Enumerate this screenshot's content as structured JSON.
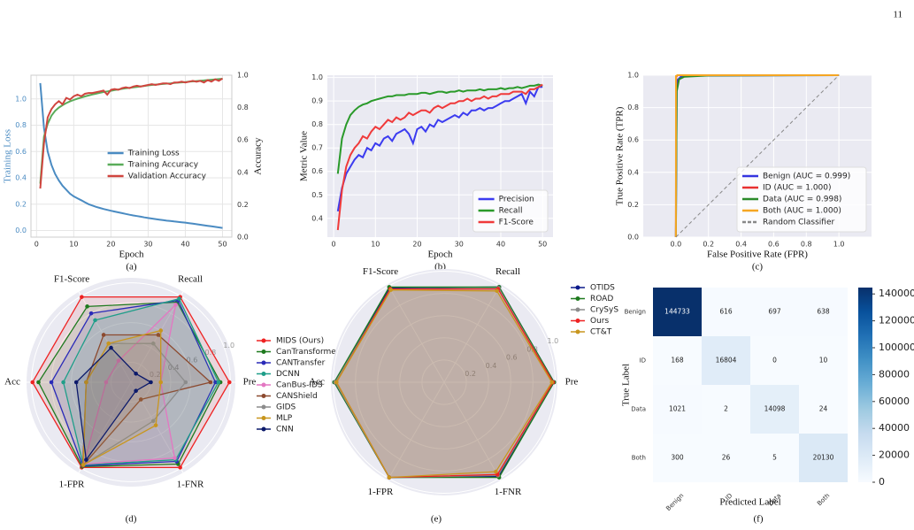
{
  "page_number": "11",
  "chart_data": [
    {
      "type": "line",
      "caption": "(a)",
      "xlabel": "Epoch",
      "ylabel": "Training Loss",
      "y2label": "Accuracy",
      "xlim": [
        -1.5,
        52.5
      ],
      "xticks": [
        0,
        10,
        20,
        30,
        40,
        50
      ],
      "ylim": [
        -0.05,
        1.18
      ],
      "yticks": [
        {
          "value": 0,
          "label": "0.0"
        },
        0.2,
        0.4,
        0.6,
        0.8,
        {
          "value": 1,
          "label": "1.0"
        }
      ],
      "y2lim": [
        0,
        1
      ],
      "y2ticks": [
        {
          "value": 0,
          "label": "0.0"
        },
        0.2,
        0.4,
        0.6,
        0.8,
        {
          "value": 1,
          "label": "1.0"
        }
      ],
      "grid": true,
      "legend": "center right",
      "ylabel_color": "#4a8bc2",
      "x": [
        1,
        2,
        3,
        4,
        5,
        6,
        7,
        8,
        9,
        10,
        11,
        12,
        13,
        14,
        15,
        16,
        17,
        18,
        19,
        20,
        21,
        22,
        23,
        24,
        25,
        26,
        27,
        28,
        29,
        30,
        31,
        32,
        33,
        34,
        35,
        36,
        37,
        38,
        39,
        40,
        41,
        42,
        43,
        44,
        45,
        46,
        47,
        48,
        49,
        50
      ],
      "series": [
        {
          "name": "Training Loss",
          "color": "#4a8bc2",
          "values": [
            1.12,
            0.78,
            0.6,
            0.5,
            0.43,
            0.38,
            0.34,
            0.31,
            0.28,
            0.26,
            0.245,
            0.23,
            0.215,
            0.2,
            0.19,
            0.18,
            0.172,
            0.164,
            0.157,
            0.15,
            0.144,
            0.138,
            0.132,
            0.126,
            0.12,
            0.115,
            0.11,
            0.105,
            0.1,
            0.095,
            0.091,
            0.087,
            0.083,
            0.079,
            0.075,
            0.072,
            0.069,
            0.066,
            0.063,
            0.06,
            0.056,
            0.052,
            0.048,
            0.044,
            0.04,
            0.036,
            0.032,
            0.028,
            0.024,
            0.02
          ]
        },
        {
          "name": "Training Accuracy",
          "color": "#5aac5a",
          "axis": "y2",
          "values": [
            0.33,
            0.62,
            0.7,
            0.75,
            0.78,
            0.8,
            0.815,
            0.828,
            0.838,
            0.847,
            0.855,
            0.862,
            0.869,
            0.875,
            0.881,
            0.886,
            0.891,
            0.896,
            0.9,
            0.904,
            0.908,
            0.912,
            0.916,
            0.919,
            0.922,
            0.925,
            0.928,
            0.931,
            0.934,
            0.937,
            0.94,
            0.942,
            0.944,
            0.946,
            0.948,
            0.95,
            0.952,
            0.954,
            0.956,
            0.958,
            0.96,
            0.962,
            0.964,
            0.966,
            0.968,
            0.97,
            0.972,
            0.974,
            0.976,
            0.978
          ]
        },
        {
          "name": "Validation Accuracy",
          "color": "#d0453f",
          "axis": "y2",
          "values": [
            0.3,
            0.58,
            0.74,
            0.79,
            0.82,
            0.84,
            0.82,
            0.86,
            0.85,
            0.87,
            0.88,
            0.87,
            0.885,
            0.89,
            0.89,
            0.895,
            0.9,
            0.905,
            0.88,
            0.91,
            0.915,
            0.91,
            0.92,
            0.925,
            0.92,
            0.93,
            0.935,
            0.93,
            0.935,
            0.94,
            0.945,
            0.94,
            0.945,
            0.95,
            0.95,
            0.945,
            0.955,
            0.955,
            0.96,
            0.955,
            0.96,
            0.965,
            0.96,
            0.965,
            0.955,
            0.97,
            0.96,
            0.975,
            0.965,
            0.98
          ]
        }
      ]
    },
    {
      "type": "line",
      "caption": "(b)",
      "xlabel": "Epoch",
      "ylabel": "Metric Value",
      "xlim": [
        -1.5,
        52.5
      ],
      "xticks": [
        0,
        10,
        20,
        30,
        40,
        50
      ],
      "ylim": [
        0.32,
        1.01
      ],
      "yticks": [
        0.4,
        0.5,
        0.6,
        0.7,
        0.8,
        0.9,
        {
          "value": 1,
          "label": "1.0"
        }
      ],
      "grid": true,
      "background": "#eaeaf2",
      "legend": "lower right",
      "x": [
        1,
        2,
        3,
        4,
        5,
        6,
        7,
        8,
        9,
        10,
        11,
        12,
        13,
        14,
        15,
        16,
        17,
        18,
        19,
        20,
        21,
        22,
        23,
        24,
        25,
        26,
        27,
        28,
        29,
        30,
        31,
        32,
        33,
        34,
        35,
        36,
        37,
        38,
        39,
        40,
        41,
        42,
        43,
        44,
        45,
        46,
        47,
        48,
        49,
        50
      ],
      "series": [
        {
          "name": "Precision",
          "color": "#3b3bf0",
          "values": [
            0.43,
            0.53,
            0.59,
            0.62,
            0.65,
            0.67,
            0.66,
            0.7,
            0.69,
            0.72,
            0.71,
            0.74,
            0.75,
            0.73,
            0.76,
            0.77,
            0.78,
            0.76,
            0.72,
            0.78,
            0.79,
            0.77,
            0.8,
            0.79,
            0.82,
            0.81,
            0.82,
            0.83,
            0.84,
            0.83,
            0.85,
            0.84,
            0.86,
            0.86,
            0.87,
            0.86,
            0.87,
            0.87,
            0.88,
            0.89,
            0.9,
            0.9,
            0.91,
            0.92,
            0.93,
            0.89,
            0.94,
            0.92,
            0.96,
            0.96
          ]
        },
        {
          "name": "Recall",
          "color": "#2a9a2a",
          "values": [
            0.59,
            0.74,
            0.8,
            0.84,
            0.86,
            0.875,
            0.885,
            0.89,
            0.9,
            0.905,
            0.91,
            0.915,
            0.92,
            0.92,
            0.925,
            0.925,
            0.925,
            0.93,
            0.93,
            0.93,
            0.935,
            0.935,
            0.93,
            0.935,
            0.94,
            0.94,
            0.935,
            0.94,
            0.94,
            0.945,
            0.94,
            0.945,
            0.945,
            0.945,
            0.95,
            0.945,
            0.95,
            0.95,
            0.95,
            0.955,
            0.95,
            0.955,
            0.955,
            0.96,
            0.955,
            0.96,
            0.965,
            0.965,
            0.97,
            0.965
          ]
        },
        {
          "name": "F1-Score",
          "color": "#f03a3a",
          "values": [
            0.35,
            0.52,
            0.62,
            0.67,
            0.7,
            0.72,
            0.75,
            0.74,
            0.77,
            0.79,
            0.78,
            0.8,
            0.82,
            0.81,
            0.83,
            0.82,
            0.83,
            0.85,
            0.84,
            0.85,
            0.86,
            0.86,
            0.85,
            0.87,
            0.88,
            0.87,
            0.88,
            0.89,
            0.89,
            0.9,
            0.9,
            0.91,
            0.9,
            0.91,
            0.91,
            0.92,
            0.91,
            0.92,
            0.92,
            0.93,
            0.93,
            0.93,
            0.94,
            0.94,
            0.94,
            0.93,
            0.95,
            0.95,
            0.96,
            0.97
          ]
        }
      ]
    },
    {
      "type": "line",
      "caption": "(c)",
      "xlabel": "False Positive Rate  (FPR)",
      "ylabel": "True Positive Rate  (TPR)",
      "xlim": [
        -0.2,
        1.2
      ],
      "xticks": [
        {
          "value": 0,
          "label": "0.0"
        },
        0.2,
        0.4,
        0.6,
        0.8,
        {
          "value": 1,
          "label": "1.0"
        }
      ],
      "ylim": [
        0,
        1
      ],
      "yticks": [
        {
          "value": 0,
          "label": "0.0"
        },
        0.2,
        0.4,
        0.6,
        0.8,
        {
          "value": 1,
          "label": "1.0"
        }
      ],
      "grid": true,
      "background": "#eaeaf2",
      "legend": "lower right",
      "series": [
        {
          "name": "Benign (AUC = 0.999)",
          "color": "#3434e0",
          "x": [
            0,
            0.005,
            0.01,
            0.03,
            0.1,
            1
          ],
          "values": [
            0,
            0.93,
            0.97,
            0.99,
            0.997,
            1
          ]
        },
        {
          "name": "ID (AUC = 1.000)",
          "color": "#e83030",
          "x": [
            0,
            0.002,
            0.01,
            1
          ],
          "values": [
            0,
            0.99,
            1,
            1
          ]
        },
        {
          "name": "Data (AUC = 0.998)",
          "color": "#2a8a2a",
          "x": [
            0,
            0.005,
            0.02,
            0.05,
            0.2,
            1
          ],
          "values": [
            0,
            0.9,
            0.975,
            0.99,
            0.998,
            1
          ]
        },
        {
          "name": "Both (AUC = 1.000)",
          "color": "#f5a623",
          "x": [
            0,
            0.001,
            0.01,
            1
          ],
          "values": [
            0,
            0.995,
            1,
            1
          ]
        },
        {
          "name": "Random Classifier",
          "color": "#888888",
          "dash": true,
          "x": [
            0,
            1
          ],
          "values": [
            0,
            1
          ]
        }
      ]
    },
    {
      "type": "radar",
      "caption": "(d)",
      "axes": [
        "Pre",
        "Recall",
        "F1-Score",
        "Acc",
        "1-FPR",
        "1-FNR"
      ],
      "rlim": [
        0,
        1.05
      ],
      "rticks": [
        0.2,
        0.4,
        0.6,
        0.8,
        {
          "value": 1,
          "label": "1.0"
        }
      ],
      "background": "#eaeaf2",
      "series": [
        {
          "name": "MIDS (Ours)",
          "color": "#ee2222",
          "values": [
            0.99,
            0.99,
            0.99,
            0.99,
            0.99,
            0.99
          ]
        },
        {
          "name": "CanTransformer",
          "color": "#1f7a1f",
          "values": [
            0.9,
            0.93,
            0.88,
            0.93,
            0.98,
            0.95
          ]
        },
        {
          "name": "CANTransfer",
          "color": "#2a2ab8",
          "values": [
            0.85,
            0.95,
            0.8,
            0.8,
            0.97,
            0.92
          ]
        },
        {
          "name": "DCNN",
          "color": "#1f9e89",
          "values": [
            0.88,
            0.97,
            0.72,
            0.68,
            0.96,
            0.9
          ]
        },
        {
          "name": "CanBus-IDS",
          "color": "#e377c2",
          "values": [
            0.3,
            0.9,
            0.25,
            0.25,
            0.95,
            0.88
          ]
        },
        {
          "name": "CANShield",
          "color": "#8c4a2f",
          "values": [
            0.8,
            0.55,
            0.55,
            0.45,
            0.97,
            0.2
          ]
        },
        {
          "name": "GIDS",
          "color": "#8c8c8c",
          "values": [
            0.55,
            0.45,
            0.45,
            0.45,
            0.96,
            0.45
          ]
        },
        {
          "name": "MLP",
          "color": "#c8961e",
          "values": [
            0.3,
            0.6,
            0.45,
            0.45,
            0.96,
            0.5
          ]
        },
        {
          "name": "CNN",
          "color": "#0c1a6b",
          "values": [
            0.2,
            0.1,
            0.4,
            0.55,
            0.9,
            0.1
          ]
        }
      ]
    },
    {
      "type": "radar",
      "caption": "(e)",
      "axes": [
        "Pre",
        "Recall",
        "F1-Score",
        "Acc",
        "1-FPR",
        "1-FNR"
      ],
      "rlim": [
        0,
        1.02
      ],
      "rticks": [
        0.2,
        0.4,
        0.6,
        0.8,
        {
          "value": 1,
          "label": "1.0"
        }
      ],
      "background": "#eaeaf2",
      "series": [
        {
          "name": "OTIDS",
          "color": "#0c1a8b",
          "values": [
            0.99,
            0.99,
            0.98,
            0.99,
            0.99,
            0.98
          ]
        },
        {
          "name": "ROAD",
          "color": "#1f7a1f",
          "values": [
            0.99,
            0.99,
            0.99,
            0.99,
            0.99,
            0.99
          ]
        },
        {
          "name": "CrySyS",
          "color": "#8c8c8c",
          "values": [
            0.98,
            0.98,
            0.97,
            0.98,
            0.99,
            0.97
          ]
        },
        {
          "name": "Ours",
          "color": "#ee2222",
          "values": [
            0.98,
            0.97,
            0.97,
            0.97,
            0.99,
            0.96
          ]
        },
        {
          "name": "CT&T",
          "color": "#c8961e",
          "values": [
            0.97,
            0.95,
            0.96,
            0.97,
            0.99,
            0.93
          ]
        }
      ]
    },
    {
      "type": "heatmap",
      "caption": "(f)",
      "xlabel": "Predicted Label",
      "ylabel": "True Label",
      "categories": [
        "Benign",
        "ID",
        "Data",
        "Both"
      ],
      "values": [
        [
          144733,
          616,
          697,
          638
        ],
        [
          168,
          16804,
          0,
          10
        ],
        [
          1021,
          2,
          14098,
          24
        ],
        [
          300,
          26,
          5,
          20130
        ]
      ],
      "colorbar_ticks": [
        0,
        20000,
        40000,
        60000,
        80000,
        100000,
        120000,
        140000
      ]
    }
  ]
}
